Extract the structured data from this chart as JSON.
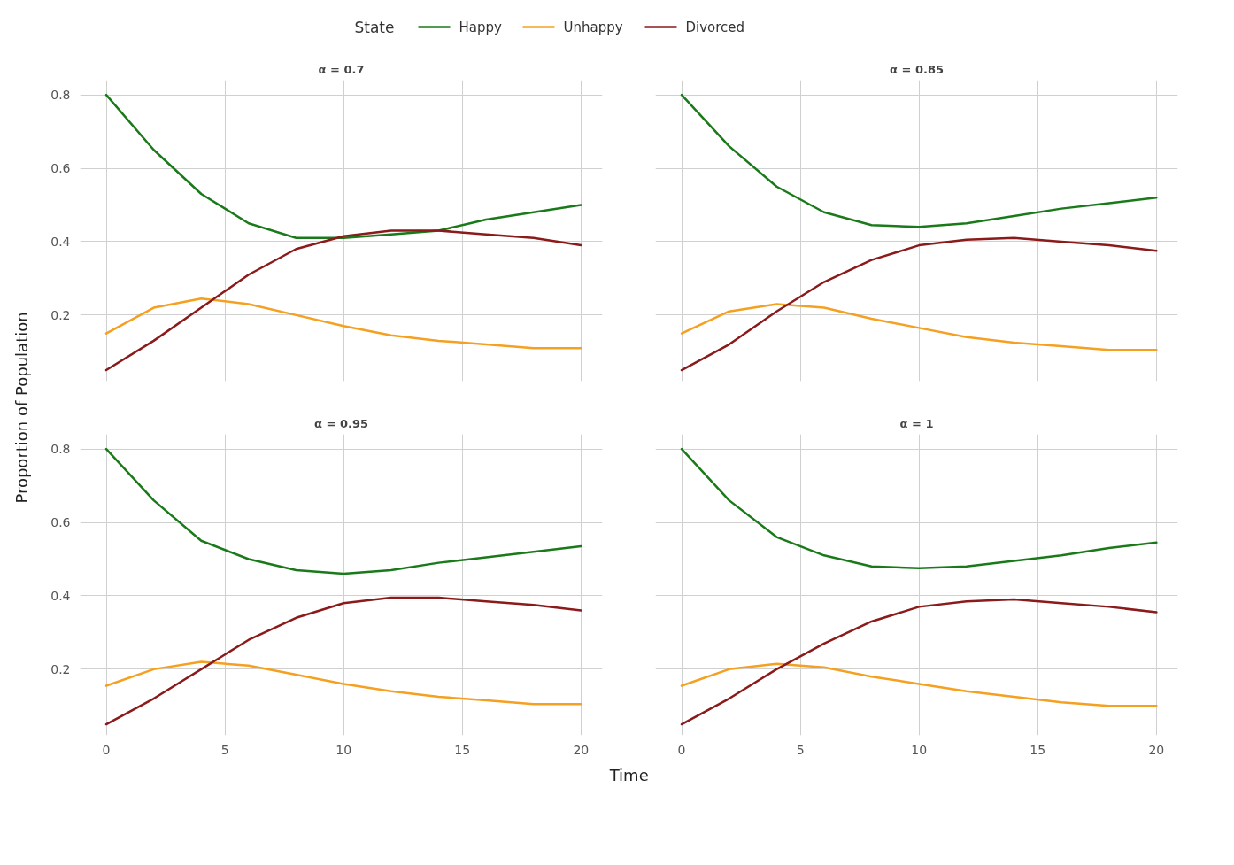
{
  "chart_data": [
    {
      "type": "line",
      "title": "α = 0.7",
      "legend_title": "State",
      "legend": "top",
      "ylabel": "Proportion of Population",
      "x": [
        0,
        2,
        4,
        6,
        8,
        10,
        12,
        14,
        16,
        18,
        20
      ],
      "xlim": [
        -1.1,
        20.9
      ],
      "ylim": [
        0.02,
        0.84
      ],
      "xticks": [
        0,
        5,
        10,
        15,
        20
      ],
      "yticks": [
        0.2,
        0.4,
        0.6,
        0.8
      ],
      "grid": true,
      "tick_labels": "y",
      "series": [
        {
          "name": "Happy",
          "color": "#1a7a1a",
          "values": [
            0.8,
            0.65,
            0.53,
            0.45,
            0.41,
            0.41,
            0.42,
            0.43,
            0.46,
            0.48,
            0.5
          ]
        },
        {
          "name": "Unhappy",
          "color": "#f5a020",
          "values": [
            0.15,
            0.22,
            0.245,
            0.23,
            0.2,
            0.17,
            0.145,
            0.13,
            0.12,
            0.11,
            0.11
          ]
        },
        {
          "name": "Divorced",
          "color": "#8b1a1a",
          "values": [
            0.05,
            0.13,
            0.22,
            0.31,
            0.38,
            0.415,
            0.43,
            0.43,
            0.42,
            0.41,
            0.39
          ]
        }
      ]
    },
    {
      "type": "line",
      "title": "α = 0.85",
      "x": [
        0,
        2,
        4,
        6,
        8,
        10,
        12,
        14,
        16,
        18,
        20
      ],
      "xlim": [
        -1.1,
        20.9
      ],
      "ylim": [
        0.02,
        0.84
      ],
      "xticks": [
        0,
        5,
        10,
        15,
        20
      ],
      "yticks": [
        0.2,
        0.4,
        0.6,
        0.8
      ],
      "grid": true,
      "tick_labels": false,
      "series": [
        {
          "color": "#1a7a1a",
          "values": [
            0.8,
            0.66,
            0.55,
            0.48,
            0.445,
            0.44,
            0.45,
            0.47,
            0.49,
            0.505,
            0.52
          ]
        },
        {
          "color": "#f5a020",
          "values": [
            0.15,
            0.21,
            0.23,
            0.22,
            0.19,
            0.165,
            0.14,
            0.125,
            0.115,
            0.105,
            0.105
          ]
        },
        {
          "color": "#8b1a1a",
          "values": [
            0.05,
            0.12,
            0.21,
            0.29,
            0.35,
            0.39,
            0.405,
            0.41,
            0.4,
            0.39,
            0.375
          ]
        }
      ]
    },
    {
      "type": "line",
      "title": "α = 0.95",
      "xlabel": "Time",
      "x": [
        0,
        2,
        4,
        6,
        8,
        10,
        12,
        14,
        16,
        18,
        20
      ],
      "xlim": [
        -1.1,
        20.9
      ],
      "ylim": [
        0.02,
        0.84
      ],
      "xticks": [
        0,
        5,
        10,
        15,
        20
      ],
      "yticks": [
        0.2,
        0.4,
        0.6,
        0.8
      ],
      "grid": true,
      "series": [
        {
          "color": "#1a7a1a",
          "values": [
            0.8,
            0.66,
            0.55,
            0.5,
            0.47,
            0.46,
            0.47,
            0.49,
            0.505,
            0.52,
            0.535
          ]
        },
        {
          "color": "#f5a020",
          "values": [
            0.155,
            0.2,
            0.22,
            0.21,
            0.185,
            0.16,
            0.14,
            0.125,
            0.115,
            0.105,
            0.105
          ]
        },
        {
          "color": "#8b1a1a",
          "values": [
            0.05,
            0.12,
            0.2,
            0.28,
            0.34,
            0.38,
            0.395,
            0.395,
            0.385,
            0.375,
            0.36
          ]
        }
      ]
    },
    {
      "type": "line",
      "title": "α = 1",
      "x": [
        0,
        2,
        4,
        6,
        8,
        10,
        12,
        14,
        16,
        18,
        20
      ],
      "xlim": [
        -1.1,
        20.9
      ],
      "ylim": [
        0.02,
        0.84
      ],
      "xticks": [
        0,
        5,
        10,
        15,
        20
      ],
      "yticks": [
        0.2,
        0.4,
        0.6,
        0.8
      ],
      "grid": true,
      "tick_labels": "x",
      "series": [
        {
          "color": "#1a7a1a",
          "values": [
            0.8,
            0.66,
            0.56,
            0.51,
            0.48,
            0.475,
            0.48,
            0.495,
            0.51,
            0.53,
            0.545
          ]
        },
        {
          "color": "#f5a020",
          "values": [
            0.155,
            0.2,
            0.215,
            0.205,
            0.18,
            0.16,
            0.14,
            0.125,
            0.11,
            0.1,
            0.1
          ]
        },
        {
          "color": "#8b1a1a",
          "values": [
            0.05,
            0.12,
            0.2,
            0.27,
            0.33,
            0.37,
            0.385,
            0.39,
            0.38,
            0.37,
            0.355
          ]
        }
      ]
    }
  ]
}
